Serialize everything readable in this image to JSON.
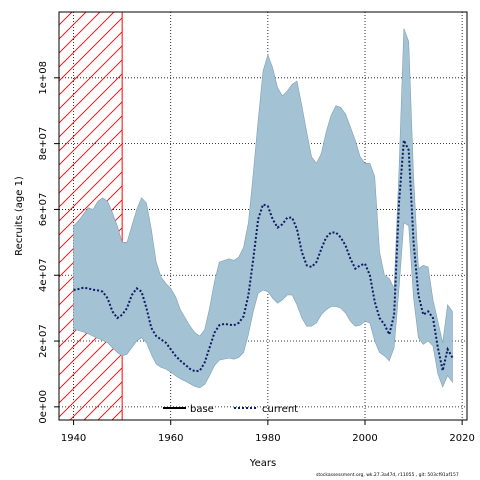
{
  "footer": "stockassessment.org, wk.27.3a47d, r11055 , git: 503cf91af157",
  "chart_data": {
    "type": "line",
    "xlabel": "Years",
    "ylabel": "Recruits (age 1)",
    "xlim": [
      1937,
      2021
    ],
    "ylim": [
      -4000000,
      120000000
    ],
    "x_ticks": [
      1940,
      1960,
      1980,
      2000,
      2020
    ],
    "x_tick_labels": [
      "1940",
      "1960",
      "1980",
      "2000",
      "2020"
    ],
    "y_ticks": [
      0,
      20000000,
      40000000,
      60000000,
      80000000,
      100000000
    ],
    "y_tick_labels": [
      "0e+00",
      "2e+07",
      "4e+07",
      "6e+07",
      "8e+07",
      "1e+08"
    ],
    "grid": true,
    "legend_position": "bottom-center",
    "legend": [
      {
        "label": "base",
        "style": "solid",
        "color": "#000000"
      },
      {
        "label": "current",
        "style": "dotted",
        "color": "#000080"
      }
    ],
    "highlight_period": {
      "from": 1937,
      "to": 1950,
      "pattern": "red diagonal hatch"
    },
    "colors": {
      "band": "#a3c3d4",
      "band_edge": "#7fa1b4",
      "current": "#0b1a63",
      "base": "#000000",
      "hatch": "#ff0000"
    },
    "years": [
      1940,
      1941,
      1942,
      1943,
      1944,
      1945,
      1946,
      1947,
      1948,
      1949,
      1950,
      1951,
      1952,
      1953,
      1954,
      1955,
      1956,
      1957,
      1958,
      1959,
      1960,
      1961,
      1962,
      1963,
      1964,
      1965,
      1966,
      1967,
      1968,
      1969,
      1970,
      1971,
      1972,
      1973,
      1974,
      1975,
      1976,
      1977,
      1978,
      1979,
      1980,
      1981,
      1982,
      1983,
      1984,
      1985,
      1986,
      1987,
      1988,
      1989,
      1990,
      1991,
      1992,
      1993,
      1994,
      1995,
      1996,
      1997,
      1998,
      1999,
      2000,
      2001,
      2002,
      2003,
      2004,
      2005,
      2006,
      2007,
      2008,
      2009,
      2010,
      2011,
      2012,
      2013,
      2014,
      2015,
      2016,
      2017,
      2018
    ],
    "series": [
      {
        "name": "current",
        "values": [
          35500000,
          35800000,
          36200000,
          36000000,
          35600000,
          35400000,
          35000000,
          33000000,
          29000000,
          27000000,
          28000000,
          30000000,
          34000000,
          36000000,
          35000000,
          30000000,
          24000000,
          21500000,
          20500000,
          19500000,
          17500000,
          15500000,
          14000000,
          12800000,
          11500000,
          10800000,
          11000000,
          13500000,
          18000000,
          22500000,
          24800000,
          25200000,
          25000000,
          24800000,
          25500000,
          27500000,
          34000000,
          45000000,
          57000000,
          61500000,
          61000000,
          57000000,
          54500000,
          55500000,
          57500000,
          57500000,
          54000000,
          47000000,
          43000000,
          42500000,
          44000000,
          48000000,
          51500000,
          53000000,
          53000000,
          51500000,
          49000000,
          45000000,
          42000000,
          43000000,
          43500000,
          40000000,
          32000000,
          27000000,
          25000000,
          22000000,
          28000000,
          62000000,
          81000000,
          78000000,
          50000000,
          34000000,
          28000000,
          29000000,
          27000000,
          18000000,
          11000000,
          17500000,
          15000000
        ]
      },
      {
        "name": "upper",
        "values": [
          55000000,
          56500000,
          58500000,
          60500000,
          60000000,
          62500000,
          63500000,
          62500000,
          59000000,
          55000000,
          50000000,
          50000000,
          55000000,
          60000000,
          63500000,
          62000000,
          54000000,
          44000000,
          39500000,
          37500000,
          36000000,
          33500000,
          29500000,
          27000000,
          24500000,
          22500000,
          21500000,
          23500000,
          30000000,
          38000000,
          44000000,
          44500000,
          45000000,
          44500000,
          45500000,
          48500000,
          56000000,
          71000000,
          87000000,
          102000000,
          107000000,
          103000000,
          97000000,
          94500000,
          96000000,
          98000000,
          99000000,
          91500000,
          83500000,
          76000000,
          74000000,
          77000000,
          83500000,
          88500000,
          91500000,
          91000000,
          89000000,
          85000000,
          81000000,
          76000000,
          74000000,
          74000000,
          70000000,
          47000000,
          40000000,
          39000000,
          36000000,
          72000000,
          115000000,
          111000000,
          70000000,
          42000000,
          43000000,
          42500000,
          32500000,
          26000000,
          19500000,
          31000000,
          29000000
        ]
      },
      {
        "name": "lower",
        "values": [
          23500000,
          23200000,
          22800000,
          22200000,
          21500000,
          20800000,
          20200000,
          19500000,
          18000000,
          16500000,
          15500000,
          16000000,
          18000000,
          20000000,
          21000000,
          19500000,
          16000000,
          13000000,
          12000000,
          11500000,
          10500000,
          9500000,
          8500000,
          7800000,
          7000000,
          6200000,
          5800000,
          6800000,
          9500000,
          12500000,
          14200000,
          14500000,
          14800000,
          14500000,
          15000000,
          16500000,
          22000000,
          29000000,
          34500000,
          35500000,
          35000000,
          33000000,
          31500000,
          32500000,
          34000000,
          34000000,
          31000000,
          27000000,
          24500000,
          24500000,
          25500000,
          28000000,
          29500000,
          30500000,
          30500000,
          30000000,
          28500000,
          26000000,
          24500000,
          24800000,
          26000000,
          25500000,
          20000000,
          16500000,
          15500000,
          14000000,
          18000000,
          36000000,
          56000000,
          55000000,
          33000000,
          21000000,
          19000000,
          20000000,
          18500000,
          10000000,
          6000000,
          9500000,
          7500000
        ]
      }
    ]
  }
}
